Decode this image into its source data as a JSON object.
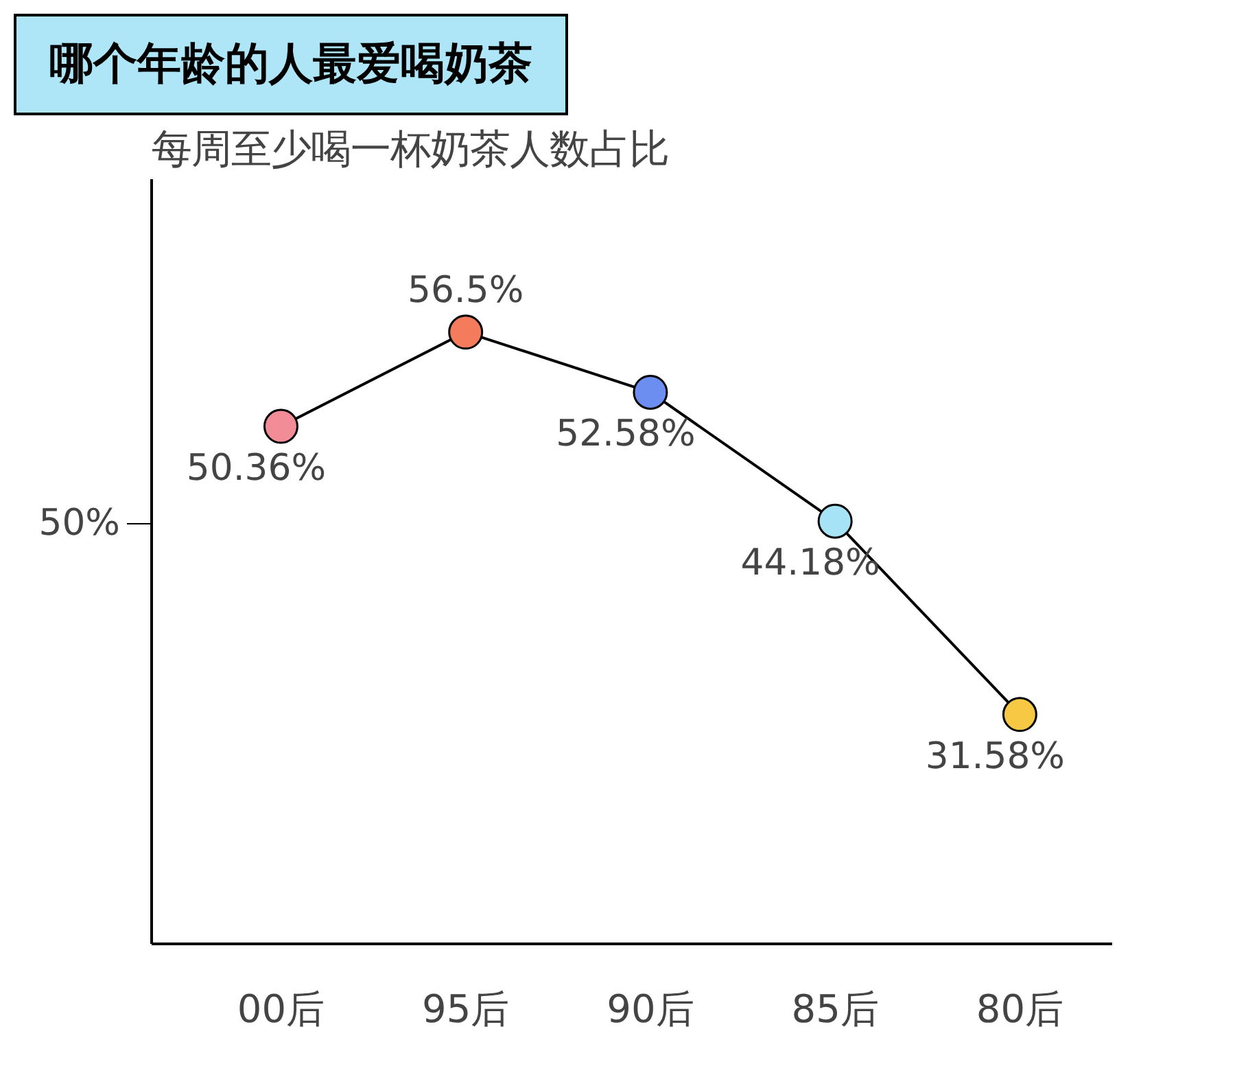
{
  "chart_data": {
    "type": "line",
    "title": "哪个年龄的人最爱喝奶茶",
    "subtitle": "每周至少喝一杯奶茶人数占比",
    "categories": [
      "00后",
      "95后",
      "90后",
      "85后",
      "80后"
    ],
    "series": [
      {
        "color": "#000000",
        "values": [
          50.36,
          56.5,
          52.58,
          44.18,
          31.58
        ],
        "colors": [
          "#f28c96",
          "#f47c5c",
          "#6b8ef0",
          "#a6e3f7",
          "#f7c843"
        ],
        "value_labels": [
          "50.36%",
          "56.5%",
          "52.58%",
          "44.18%",
          "31.58%"
        ]
      }
    ],
    "annotations": [
      "50%"
    ],
    "marker": "circle",
    "line_style": "solid"
  }
}
